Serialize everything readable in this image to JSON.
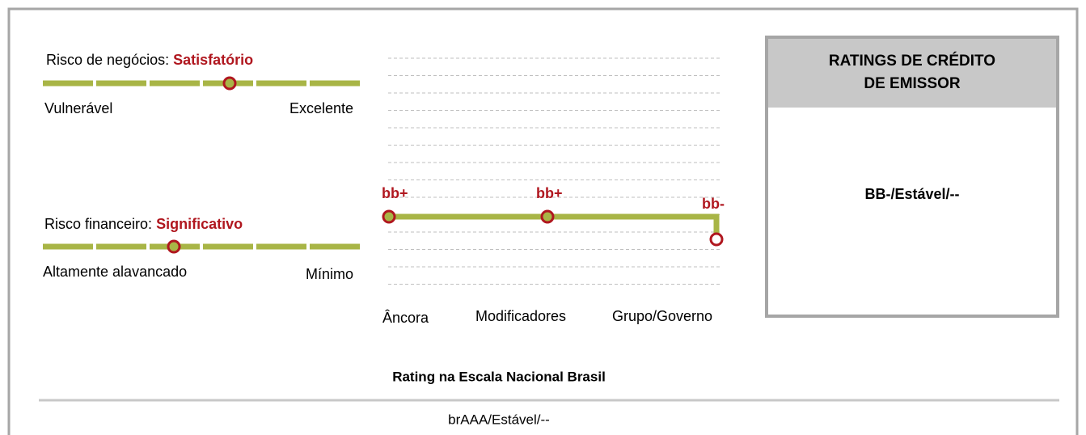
{
  "business_risk": {
    "label": "Risco de negócios:",
    "value": "Satisfatório",
    "low": "Vulnerável",
    "high": "Excelente"
  },
  "financial_risk": {
    "label": "Risco financeiro:",
    "value": "Significativo",
    "low": "Altamente alavancado",
    "high": "Mínimo"
  },
  "steps": [
    {
      "label": "Âncora",
      "rating": "bb+"
    },
    {
      "label": "Modificadores",
      "rating": "bb+"
    },
    {
      "label": "Grupo/Governo",
      "rating": "bb-"
    }
  ],
  "issuer_box": {
    "title_lines": [
      "RATINGS DE CRÉDITO",
      "DE EMISSOR"
    ],
    "rating": "BB-/Estável/--"
  },
  "national_scale": {
    "title": "Rating na Escala Nacional Brasil",
    "rating": "brAAA/Estável/--"
  }
}
